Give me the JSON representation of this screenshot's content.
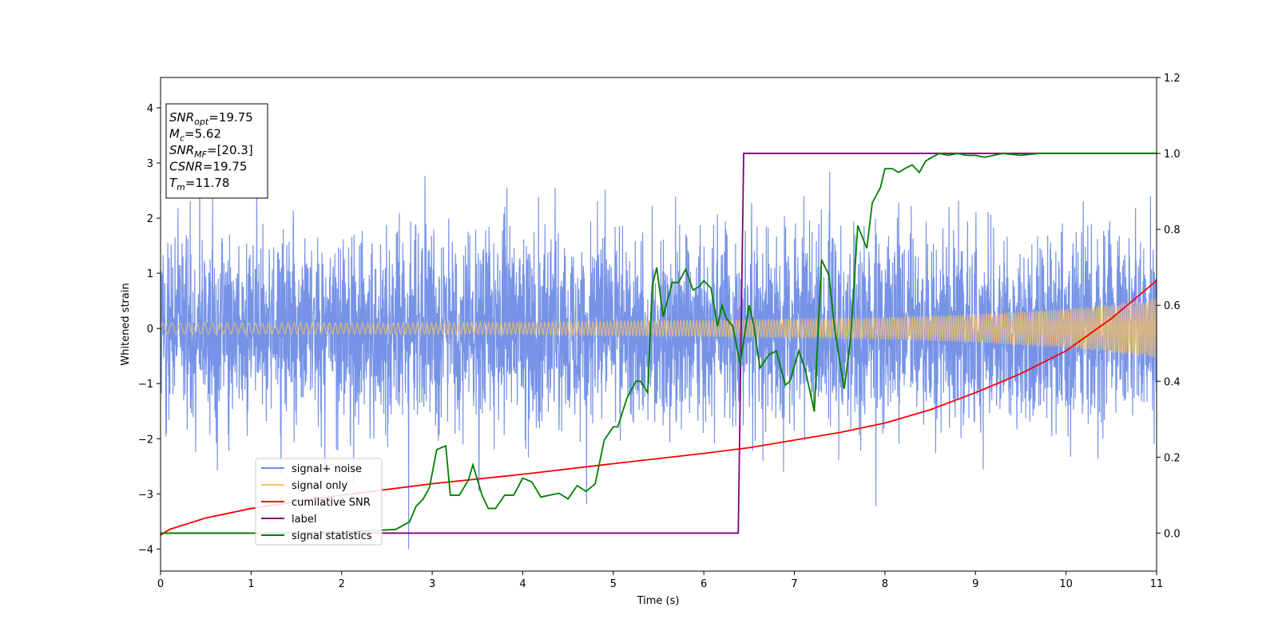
{
  "chart_data": {
    "type": "line",
    "xlabel": "Time (s)",
    "ylabel": "Whitened strain",
    "xlim": [
      0,
      11
    ],
    "ylim_left": [
      -4.4,
      4.55
    ],
    "ylim_right": [
      -0.1,
      1.2
    ],
    "xticks": [
      "0",
      "1",
      "2",
      "3",
      "4",
      "5",
      "6",
      "7",
      "8",
      "9",
      "10",
      "11"
    ],
    "yticks_left": [
      "−4",
      "−3",
      "−2",
      "−1",
      "0",
      "1",
      "2",
      "3",
      "4"
    ],
    "yticks_right": [
      "0.0",
      "0.2",
      "0.4",
      "0.6",
      "0.8",
      "1.0",
      "1.2"
    ],
    "grid": false,
    "legend_position": "lower-left",
    "legend": [
      {
        "label": "signal+ noise",
        "color": "#6f8de6"
      },
      {
        "label": "signal only",
        "color": "#f5c06a"
      },
      {
        "label": "cumilative SNR",
        "color": "#ff0000"
      },
      {
        "label": "label",
        "color": "#800080"
      },
      {
        "label": "signal statistics",
        "color": "#008000"
      }
    ],
    "annotation": [
      {
        "base": "SNR",
        "sub": "opt",
        "value": "=19.75"
      },
      {
        "base": "M",
        "sub": "c",
        "value": "=5.62"
      },
      {
        "base": "SNR",
        "sub": "MF",
        "value": "=[20.3]"
      },
      {
        "base": "CSNR",
        "sub": "",
        "value": "=19.75"
      },
      {
        "base": "T",
        "sub": "m",
        "value": "=11.78"
      }
    ],
    "series": [
      {
        "name": "signal+ noise",
        "axis": "left",
        "color": "#6f8de6",
        "description": "dense noisy strain centered at 0, typical range about −2.2 to 2.4 with spikes to about ±4",
        "x_range": [
          0,
          11
        ],
        "typical_range": [
          -2.2,
          2.4
        ],
        "extremes": [
          -4.0,
          4.15
        ]
      },
      {
        "name": "signal only",
        "axis": "left",
        "color": "#f5c06a",
        "description": "chirp signal whose amplitude grows from about 0.1 at t=0 to about 0.55 at t=11",
        "envelope_x": [
          0,
          2,
          4,
          6,
          8,
          9,
          10,
          10.5,
          11
        ],
        "envelope_amp": [
          0.1,
          0.1,
          0.11,
          0.15,
          0.2,
          0.26,
          0.36,
          0.44,
          0.55
        ]
      },
      {
        "name": "cumilative SNR",
        "axis": "right",
        "color": "#ff0000",
        "x": [
          0,
          0.1,
          0.5,
          1,
          2,
          3,
          4,
          5,
          6,
          6.5,
          7,
          7.5,
          8,
          8.5,
          9,
          9.5,
          10,
          10.5,
          11
        ],
        "y": [
          -0.005,
          0.01,
          0.04,
          0.065,
          0.1,
          0.13,
          0.155,
          0.183,
          0.21,
          0.225,
          0.245,
          0.265,
          0.29,
          0.325,
          0.37,
          0.42,
          0.48,
          0.565,
          0.665
        ]
      },
      {
        "name": "label",
        "axis": "right",
        "color": "#800080",
        "x": [
          0,
          6.38,
          6.44,
          11
        ],
        "y": [
          0,
          0,
          1,
          1
        ]
      },
      {
        "name": "signal statistics",
        "axis": "right",
        "color": "#008000",
        "x": [
          0,
          0.5,
          1,
          1.5,
          2,
          2.4,
          2.6,
          2.75,
          2.82,
          2.9,
          2.97,
          3.05,
          3.15,
          3.2,
          3.3,
          3.4,
          3.45,
          3.55,
          3.62,
          3.7,
          3.8,
          3.9,
          4.0,
          4.1,
          4.2,
          4.3,
          4.4,
          4.5,
          4.6,
          4.7,
          4.8,
          4.9,
          5.0,
          5.05,
          5.15,
          5.25,
          5.3,
          5.38,
          5.43,
          5.48,
          5.55,
          5.65,
          5.72,
          5.8,
          5.88,
          5.95,
          6.0,
          6.08,
          6.15,
          6.2,
          6.25,
          6.32,
          6.4,
          6.5,
          6.55,
          6.62,
          6.72,
          6.8,
          6.9,
          6.95,
          7.05,
          7.12,
          7.22,
          7.3,
          7.38,
          7.45,
          7.55,
          7.62,
          7.7,
          7.8,
          7.86,
          7.95,
          8.0,
          8.08,
          8.15,
          8.22,
          8.3,
          8.38,
          8.45,
          8.52,
          8.6,
          8.7,
          8.8,
          8.9,
          9.0,
          9.1,
          9.2,
          9.3,
          9.5,
          9.7,
          10.0,
          10.5,
          11
        ],
        "y": [
          0,
          0,
          0,
          0.001,
          0.003,
          0.007,
          0.01,
          0.03,
          0.07,
          0.09,
          0.12,
          0.22,
          0.23,
          0.1,
          0.1,
          0.14,
          0.18,
          0.1,
          0.065,
          0.065,
          0.1,
          0.1,
          0.145,
          0.135,
          0.095,
          0.1,
          0.105,
          0.09,
          0.125,
          0.11,
          0.13,
          0.245,
          0.28,
          0.28,
          0.355,
          0.4,
          0.4,
          0.37,
          0.65,
          0.7,
          0.57,
          0.66,
          0.66,
          0.695,
          0.64,
          0.65,
          0.665,
          0.645,
          0.545,
          0.6,
          0.565,
          0.545,
          0.445,
          0.6,
          0.55,
          0.435,
          0.47,
          0.48,
          0.39,
          0.4,
          0.48,
          0.43,
          0.32,
          0.72,
          0.68,
          0.53,
          0.38,
          0.51,
          0.81,
          0.75,
          0.87,
          0.91,
          0.96,
          0.96,
          0.95,
          0.96,
          0.97,
          0.95,
          0.98,
          0.99,
          1.0,
          0.995,
          1.0,
          0.995,
          0.995,
          0.99,
          0.995,
          1.0,
          0.995,
          1.0,
          1.0,
          1.0,
          1.0
        ]
      }
    ]
  }
}
